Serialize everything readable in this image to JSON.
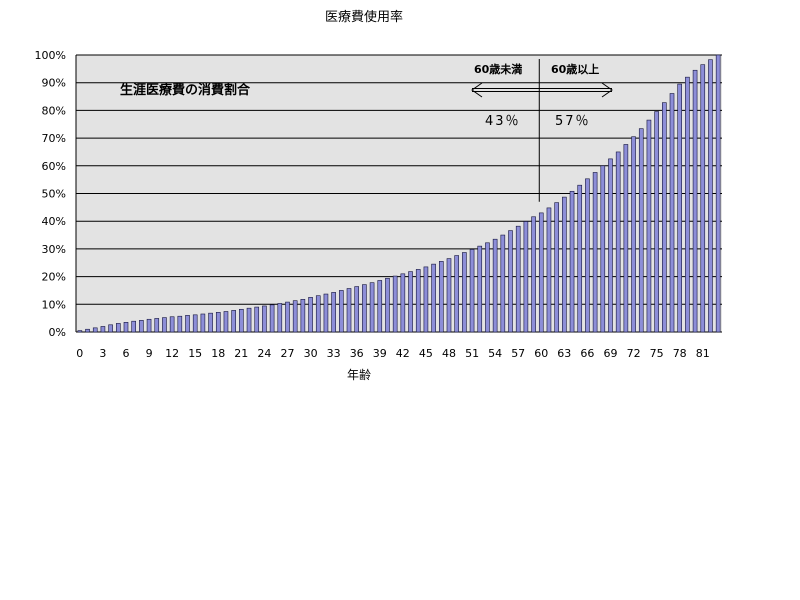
{
  "chart_data": {
    "type": "bar",
    "title": "医療費使用率",
    "xlabel": "年齢",
    "ylabel": "",
    "ylim": [
      0,
      100
    ],
    "y_ticks": [
      "0%",
      "10%",
      "20%",
      "30%",
      "40%",
      "50%",
      "60%",
      "70%",
      "80%",
      "90%",
      "100%"
    ],
    "x_ticks": [
      "0",
      "3",
      "6",
      "9",
      "12",
      "15",
      "18",
      "21",
      "24",
      "27",
      "30",
      "33",
      "36",
      "39",
      "42",
      "45",
      "48",
      "51",
      "54",
      "57",
      "60",
      "63",
      "66",
      "69",
      "72",
      "75",
      "78",
      "81"
    ],
    "grid": true,
    "plot_background": "#e3e3e3",
    "bar_color": "#8d8ed8",
    "bar_edge_color": "#14143c",
    "x": [
      0,
      1,
      2,
      3,
      4,
      5,
      6,
      7,
      8,
      9,
      10,
      11,
      12,
      13,
      14,
      15,
      16,
      17,
      18,
      19,
      20,
      21,
      22,
      23,
      24,
      25,
      26,
      27,
      28,
      29,
      30,
      31,
      32,
      33,
      34,
      35,
      36,
      37,
      38,
      39,
      40,
      41,
      42,
      43,
      44,
      45,
      46,
      47,
      48,
      49,
      50,
      51,
      52,
      53,
      54,
      55,
      56,
      57,
      58,
      59,
      60,
      61,
      62,
      63,
      64,
      65,
      66,
      67,
      68,
      69,
      70,
      71,
      72,
      73,
      74,
      75,
      76,
      77,
      78,
      79,
      80,
      81,
      82,
      83
    ],
    "values": [
      0.5,
      1.0,
      1.5,
      2.0,
      2.6,
      3.1,
      3.5,
      3.9,
      4.2,
      4.6,
      4.9,
      5.2,
      5.5,
      5.7,
      6.0,
      6.2,
      6.5,
      6.8,
      7.1,
      7.4,
      7.8,
      8.2,
      8.6,
      9.0,
      9.4,
      9.8,
      10.3,
      10.8,
      11.3,
      11.8,
      12.5,
      13.1,
      13.7,
      14.3,
      15.0,
      15.7,
      16.4,
      17.1,
      17.8,
      18.6,
      19.4,
      20.2,
      21.0,
      21.8,
      22.6,
      23.5,
      24.5,
      25.5,
      26.5,
      27.6,
      28.7,
      29.8,
      31.0,
      32.2,
      33.5,
      35.0,
      36.6,
      38.2,
      39.9,
      41.6,
      43.0,
      44.8,
      46.7,
      48.7,
      50.8,
      53.0,
      55.3,
      57.6,
      60.0,
      62.5,
      65.0,
      67.7,
      70.5,
      73.4,
      76.5,
      79.6,
      82.8,
      86.1,
      89.5,
      92.0,
      94.5,
      96.5,
      98.3,
      100.0
    ],
    "annotations": {
      "label": "生涯医療費の消費割合",
      "divider_age": 60,
      "under_label": "60歳未満",
      "over_label": "60歳以上",
      "under_pct": "43％",
      "over_pct": "57％"
    }
  }
}
